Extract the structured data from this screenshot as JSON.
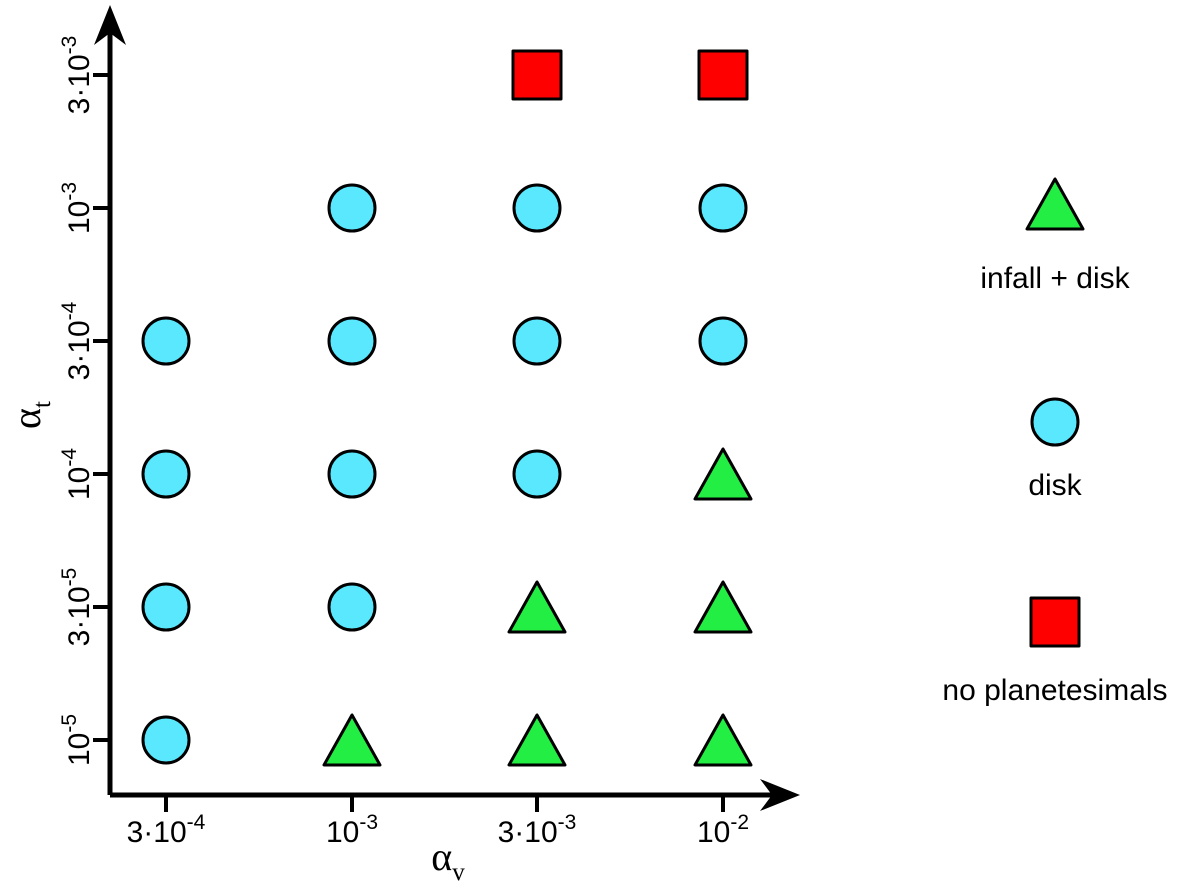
{
  "chart_data": {
    "type": "scatter",
    "title": "",
    "x_axis": {
      "label": "α",
      "label_sub": "v",
      "categories": [
        {
          "key": "3e-4",
          "mant": "3·10",
          "exp": "-4"
        },
        {
          "key": "1e-3",
          "mant": "10",
          "exp": "-3"
        },
        {
          "key": "3e-3",
          "mant": "3·10",
          "exp": "-3"
        },
        {
          "key": "1e-2",
          "mant": "10",
          "exp": "-2"
        }
      ]
    },
    "y_axis": {
      "label": "α",
      "label_sub": "t",
      "categories": [
        {
          "key": "1e-5",
          "mant": "10",
          "exp": "-5"
        },
        {
          "key": "3e-5",
          "mant": "3·10",
          "exp": "-5"
        },
        {
          "key": "1e-4",
          "mant": "10",
          "exp": "-4"
        },
        {
          "key": "3e-4",
          "mant": "3·10",
          "exp": "-4"
        },
        {
          "key": "1e-3",
          "mant": "10",
          "exp": "-3"
        },
        {
          "key": "3e-3",
          "mant": "3·10",
          "exp": "-3"
        }
      ]
    },
    "series": [
      {
        "name": "infall + disk",
        "marker": "triangle",
        "color": "#22ee44",
        "points": [
          {
            "x": "1e-3",
            "y": "1e-5"
          },
          {
            "x": "3e-3",
            "y": "1e-5"
          },
          {
            "x": "1e-2",
            "y": "1e-5"
          },
          {
            "x": "3e-3",
            "y": "3e-5"
          },
          {
            "x": "1e-2",
            "y": "3e-5"
          },
          {
            "x": "1e-2",
            "y": "1e-4"
          }
        ]
      },
      {
        "name": "disk",
        "marker": "circle",
        "color": "#5ae8ff",
        "points": [
          {
            "x": "3e-4",
            "y": "1e-5"
          },
          {
            "x": "3e-4",
            "y": "3e-5"
          },
          {
            "x": "1e-3",
            "y": "3e-5"
          },
          {
            "x": "3e-4",
            "y": "1e-4"
          },
          {
            "x": "1e-3",
            "y": "1e-4"
          },
          {
            "x": "3e-3",
            "y": "1e-4"
          },
          {
            "x": "3e-4",
            "y": "3e-4"
          },
          {
            "x": "1e-3",
            "y": "3e-4"
          },
          {
            "x": "3e-3",
            "y": "3e-4"
          },
          {
            "x": "1e-2",
            "y": "3e-4"
          },
          {
            "x": "1e-3",
            "y": "1e-3"
          },
          {
            "x": "3e-3",
            "y": "1e-3"
          },
          {
            "x": "1e-2",
            "y": "1e-3"
          }
        ]
      },
      {
        "name": "no planetesimals",
        "marker": "square",
        "color": "#ff0000",
        "points": [
          {
            "x": "3e-3",
            "y": "3e-3"
          },
          {
            "x": "1e-2",
            "y": "3e-3"
          }
        ]
      }
    ],
    "legend_position": "right",
    "grid": false
  }
}
